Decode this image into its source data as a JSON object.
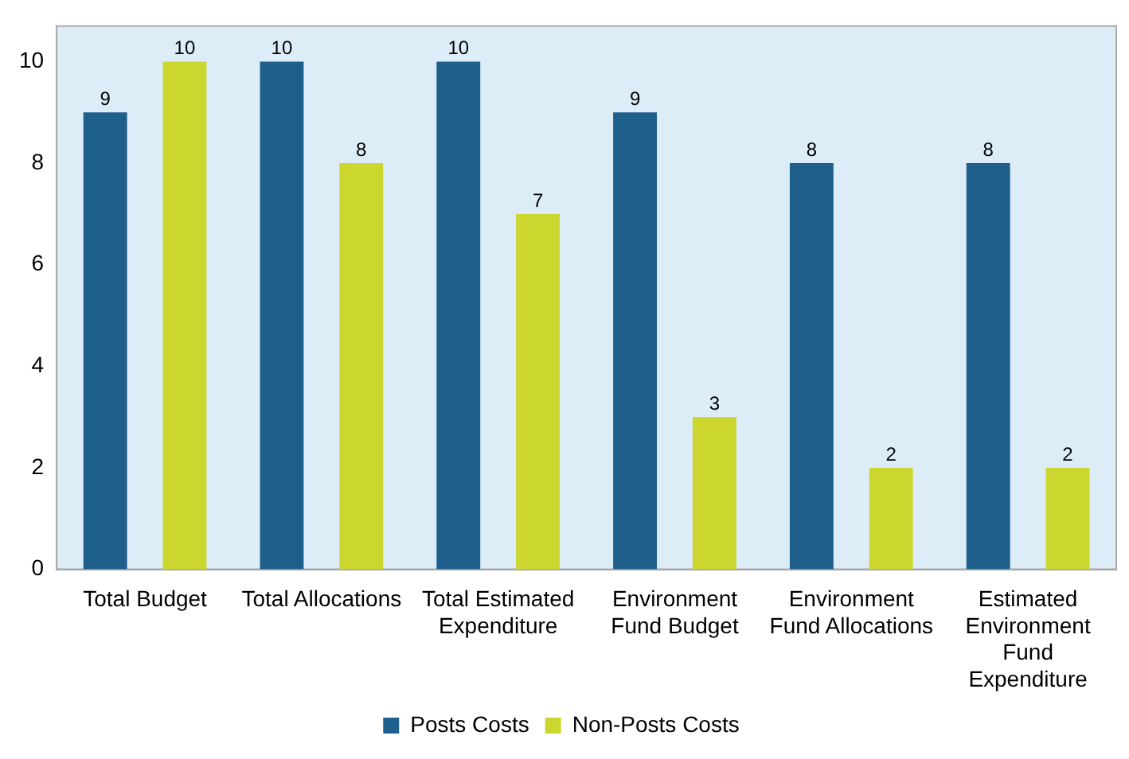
{
  "chart_data": {
    "type": "bar",
    "categories": [
      "Total Budget",
      "Total Allocations",
      "Total Estimated Expenditure",
      "Environment Fund Budget",
      "Environment Fund Allocations",
      "Estimated Environment Fund Expenditure"
    ],
    "series": [
      {
        "name": "Posts Costs",
        "color": "#1f5f8c",
        "values": [
          9,
          10,
          10,
          9,
          8,
          8
        ]
      },
      {
        "name": "Non-Posts Costs",
        "color": "#cbd62e",
        "values": [
          10,
          8,
          7,
          3,
          2,
          2
        ]
      }
    ],
    "ylim": [
      0,
      10.7
    ],
    "yticks": [
      0,
      2,
      4,
      6,
      8,
      10
    ],
    "grid": false,
    "legend": "bottom",
    "data_labels": true
  }
}
